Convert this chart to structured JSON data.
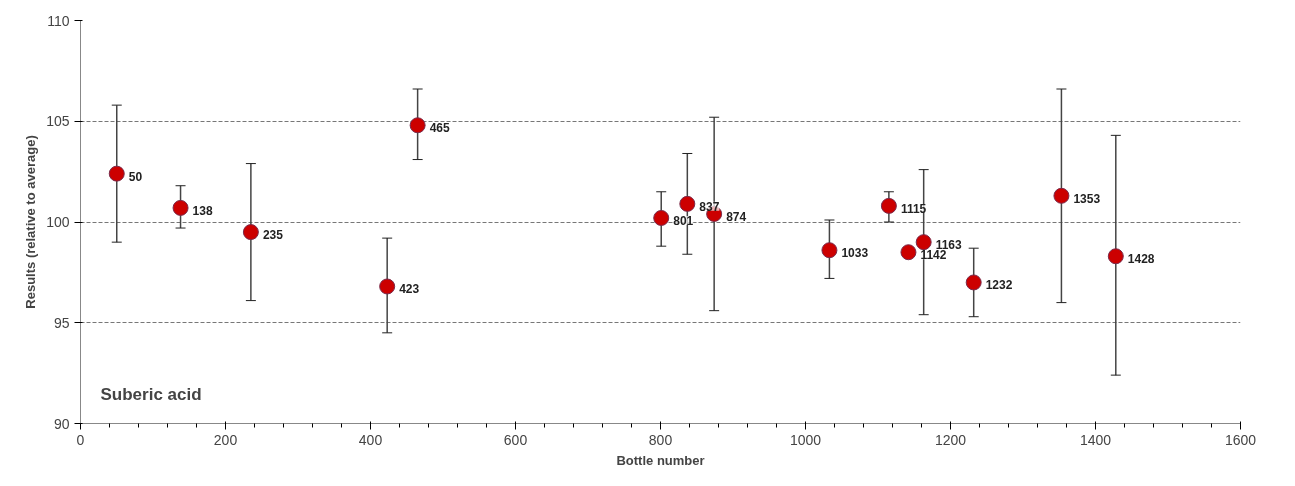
{
  "chart_data": {
    "type": "scatter",
    "title": "Suberic acid",
    "xlabel": "Bottle number",
    "ylabel": "Results (relative to average)",
    "x": [
      50,
      138,
      235,
      423,
      465,
      801,
      837,
      874,
      1033,
      1115,
      1142,
      1163,
      1232,
      1353,
      1428
    ],
    "values": [
      102.4,
      100.7,
      99.5,
      96.8,
      104.8,
      100.2,
      100.9,
      100.4,
      98.6,
      100.8,
      98.5,
      99.0,
      97.0,
      101.3,
      98.3
    ],
    "errors": [
      [
        99.0,
        105.8
      ],
      [
        99.7,
        101.8
      ],
      [
        96.1,
        102.9
      ],
      [
        94.5,
        99.2
      ],
      [
        103.1,
        106.6
      ],
      [
        98.8,
        101.5
      ],
      [
        98.4,
        103.4
      ],
      [
        95.6,
        105.2
      ],
      [
        97.2,
        100.1
      ],
      [
        100.0,
        101.5
      ],
      null,
      [
        95.4,
        102.6
      ],
      [
        95.3,
        98.7
      ],
      [
        96.0,
        106.6
      ],
      [
        92.4,
        104.3
      ]
    ],
    "annotations": [
      {
        "text": "50",
        "x": 50,
        "y": 102.4
      },
      {
        "text": "138",
        "x": 138,
        "y": 100.7
      },
      {
        "text": "235",
        "x": 235,
        "y": 99.5
      },
      {
        "text": "423",
        "x": 423,
        "y": 96.8
      },
      {
        "text": "465",
        "x": 465,
        "y": 104.8
      },
      {
        "text": "801",
        "x": 801,
        "y": 100.2
      },
      {
        "text": "837",
        "x": 837,
        "y": 100.9
      },
      {
        "text": "874",
        "x": 874,
        "y": 100.4
      },
      {
        "text": "1033",
        "x": 1033,
        "y": 98.6
      },
      {
        "text": "1115",
        "x": 1115,
        "y": 100.8
      },
      {
        "text": "1142",
        "x": 1142,
        "y": 98.5
      },
      {
        "text": "1163",
        "x": 1163,
        "y": 99.0
      },
      {
        "text": "1232",
        "x": 1232,
        "y": 97.0
      },
      {
        "text": "1353",
        "x": 1353,
        "y": 101.3
      },
      {
        "text": "1428",
        "x": 1428,
        "y": 98.3
      }
    ],
    "color": "#cc0000",
    "marker": "circle",
    "grid": "y",
    "xlim": [
      0,
      1600
    ],
    "xticks": [
      0,
      200,
      400,
      600,
      800,
      1000,
      1200,
      1400,
      1600
    ],
    "ylim": [
      90,
      110
    ],
    "yticks": [
      90,
      95,
      100,
      105,
      110
    ]
  }
}
